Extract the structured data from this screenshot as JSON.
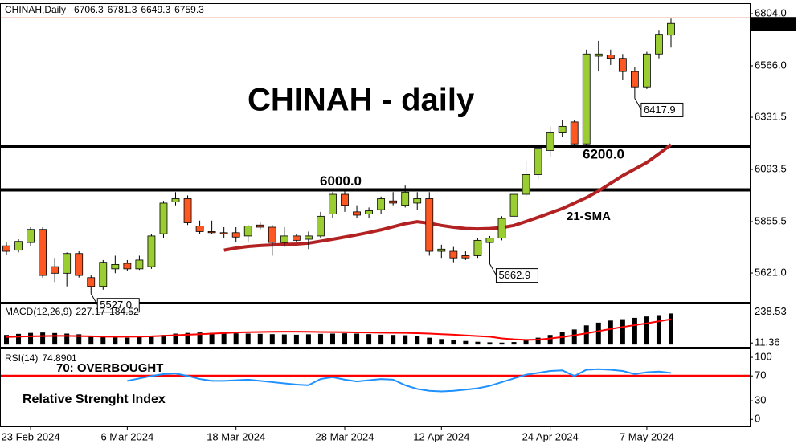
{
  "chart_data": [
    {
      "type": "candlestick",
      "title": "CHINAH,Daily",
      "x": [
        null,
        null,
        "23 Feb 2024",
        null,
        null,
        null,
        null,
        null,
        null,
        null,
        "6 Mar 2024",
        null,
        null,
        null,
        null,
        null,
        null,
        null,
        null,
        "18 Mar 2024",
        null,
        null,
        null,
        null,
        null,
        null,
        null,
        null,
        "28 Mar 2024",
        null,
        null,
        null,
        null,
        null,
        null,
        null,
        "12 Apr 2024",
        null,
        null,
        null,
        null,
        null,
        null,
        null,
        null,
        "24 Apr 2024",
        null,
        null,
        null,
        null,
        null,
        null,
        null,
        "7 May 2024",
        null,
        null
      ],
      "open": [
        5745,
        5725,
        5760,
        5820,
        5650,
        5620,
        5710,
        5600,
        5560,
        5640,
        5665,
        5640,
        5650,
        5800,
        5945,
        5960,
        5835,
        5810,
        5805,
        5805,
        5790,
        5840,
        5830,
        5760,
        5790,
        5775,
        5790,
        5890,
        5980,
        5900,
        5890,
        5910,
        5950,
        5930,
        5940,
        5960,
        5720,
        5720,
        5700,
        5700,
        5760,
        5780,
        5880,
        5980,
        6070,
        6180,
        6260,
        6310,
        6210,
        6610,
        6615,
        6600,
        6540,
        6470,
        6620,
        6706.3
      ],
      "high": [
        5760,
        5775,
        5830,
        5830,
        5690,
        5715,
        5720,
        5610,
        5680,
        5700,
        5680,
        5700,
        5800,
        5950,
        5990,
        5975,
        5860,
        5860,
        5830,
        5830,
        5840,
        5855,
        5840,
        5830,
        5800,
        5810,
        5900,
        5990,
        6000,
        5930,
        5920,
        5970,
        5990,
        6020,
        5990,
        5990,
        5750,
        5740,
        5720,
        5780,
        5790,
        5880,
        5990,
        6130,
        6200,
        6290,
        6320,
        6320,
        6640,
        6680,
        6640,
        6620,
        6560,
        6630,
        6730,
        6781.3
      ],
      "low": [
        5705,
        5715,
        5745,
        5600,
        5580,
        5560,
        5600,
        5527,
        5545,
        5620,
        5630,
        5635,
        5640,
        5780,
        5930,
        5840,
        5800,
        5800,
        5780,
        5760,
        5760,
        5820,
        5700,
        5740,
        5760,
        5730,
        5780,
        5870,
        5900,
        5870,
        5870,
        5890,
        5930,
        5920,
        5910,
        5700,
        5690,
        5670,
        5680,
        5690,
        5662.9,
        5770,
        5870,
        5970,
        6050,
        6150,
        6240,
        6200,
        6200,
        6540,
        6570,
        6500,
        6417.9,
        6460,
        6600,
        6649.3
      ],
      "close": [
        5720,
        5765,
        5820,
        5610,
        5620,
        5710,
        5610,
        5560,
        5670,
        5660,
        5640,
        5680,
        5790,
        5940,
        5960,
        5850,
        5810,
        5805,
        5800,
        5785,
        5835,
        5830,
        5760,
        5790,
        5770,
        5790,
        5880,
        5980,
        5930,
        5885,
        5905,
        5960,
        5940,
        5990,
        5960,
        5720,
        5730,
        5690,
        5690,
        5770,
        5780,
        5870,
        5980,
        6070,
        6190,
        6260,
        6290,
        6210,
        6620,
        6620,
        6600,
        6540,
        6470,
        6620,
        6710,
        6759.3
      ],
      "up_color": "#9acd32",
      "down_color": "#ff5722",
      "series": [
        {
          "name": "21-SMA",
          "color": "#b22222",
          "values": [
            null,
            null,
            null,
            null,
            null,
            null,
            null,
            null,
            null,
            null,
            null,
            null,
            null,
            null,
            null,
            null,
            null,
            null,
            5725,
            5735,
            5742,
            5746,
            5749,
            5751,
            5753,
            5757,
            5766,
            5775,
            5785,
            5795,
            5806,
            5818,
            5832,
            5846,
            5855,
            5848,
            5838,
            5830,
            5824,
            5822,
            5824,
            5828,
            5838,
            5856,
            5875,
            5895,
            5915,
            5940,
            5965,
            5995,
            6030,
            6065,
            6095,
            6125,
            6165,
            6207
          ]
        }
      ],
      "ylim": [
        5493,
        6848
      ],
      "yticks": [
        {
          "value": 5621,
          "label": "5621.0"
        },
        5855.5,
        6093.5,
        6331.5,
        {
          "value": 6566,
          "label": "6566.0"
        },
        {
          "value": 6804,
          "label": "6804.0"
        }
      ],
      "levels": [
        {
          "value": 6000,
          "label": "6000.0"
        },
        {
          "value": 6200,
          "label": "6200.0"
        }
      ],
      "low_labels": [
        {
          "value": 5527,
          "label": "5527.0"
        },
        5662.9,
        6417.9
      ],
      "annotations": [
        "CHINAH - daily"
      ]
    },
    {
      "type": "macd",
      "title": "MACD(12,26,9)",
      "series": [
        {
          "style": "bar",
          "color": "#000000",
          "values": [
            70,
            78,
            85,
            88,
            84,
            80,
            75,
            60,
            55,
            52,
            50,
            55,
            60,
            70,
            80,
            85,
            88,
            86,
            84,
            82,
            80,
            78,
            76,
            74,
            72,
            75,
            78,
            80,
            82,
            80,
            76,
            72,
            70,
            68,
            60,
            50,
            40,
            32,
            26,
            20,
            16,
            14,
            18,
            30,
            50,
            70,
            90,
            110,
            140,
            160,
            175,
            185,
            195,
            205,
            215,
            227.17
          ]
        },
        {
          "style": "line",
          "color": "#ff0000",
          "values": [
            55,
            58,
            60,
            62,
            63,
            63,
            62,
            60,
            58,
            57,
            57,
            58,
            60,
            64,
            68,
            72,
            76,
            80,
            84,
            88,
            90,
            92,
            93,
            94,
            94,
            93,
            92,
            91,
            90,
            89,
            88,
            87,
            86,
            85,
            83,
            80,
            76,
            72,
            67,
            62,
            57,
            45,
            38,
            34,
            36,
            44,
            55,
            68,
            82,
            98,
            114,
            128,
            142,
            155,
            170,
            184.52
          ]
        }
      ],
      "ylim": [
        -5,
        300
      ],
      "yticks": [
        11.36,
        238.53
      ]
    },
    {
      "type": "line",
      "title": "RSI(14)",
      "series": [
        {
          "color": "#1e90ff",
          "values": [
            null,
            null,
            null,
            null,
            null,
            null,
            null,
            null,
            null,
            null,
            62,
            66,
            70,
            73,
            74,
            70,
            65,
            62,
            62,
            63,
            64,
            62,
            60,
            58,
            56,
            55,
            65,
            68,
            64,
            61,
            63,
            65,
            64,
            55,
            49,
            46,
            45,
            46,
            48,
            50,
            54,
            60,
            66,
            72,
            75,
            78,
            79,
            70,
            80,
            81,
            80,
            78,
            73,
            76,
            77,
            74.8901
          ]
        }
      ],
      "ylim": [
        -10,
        113
      ],
      "yticks": [
        0,
        30,
        70,
        100
      ],
      "levels": [
        70
      ],
      "level_color": "#ff0000",
      "annotations": [
        "70: OVERBOUGHT",
        "Relative Strenght Index"
      ]
    }
  ]
}
